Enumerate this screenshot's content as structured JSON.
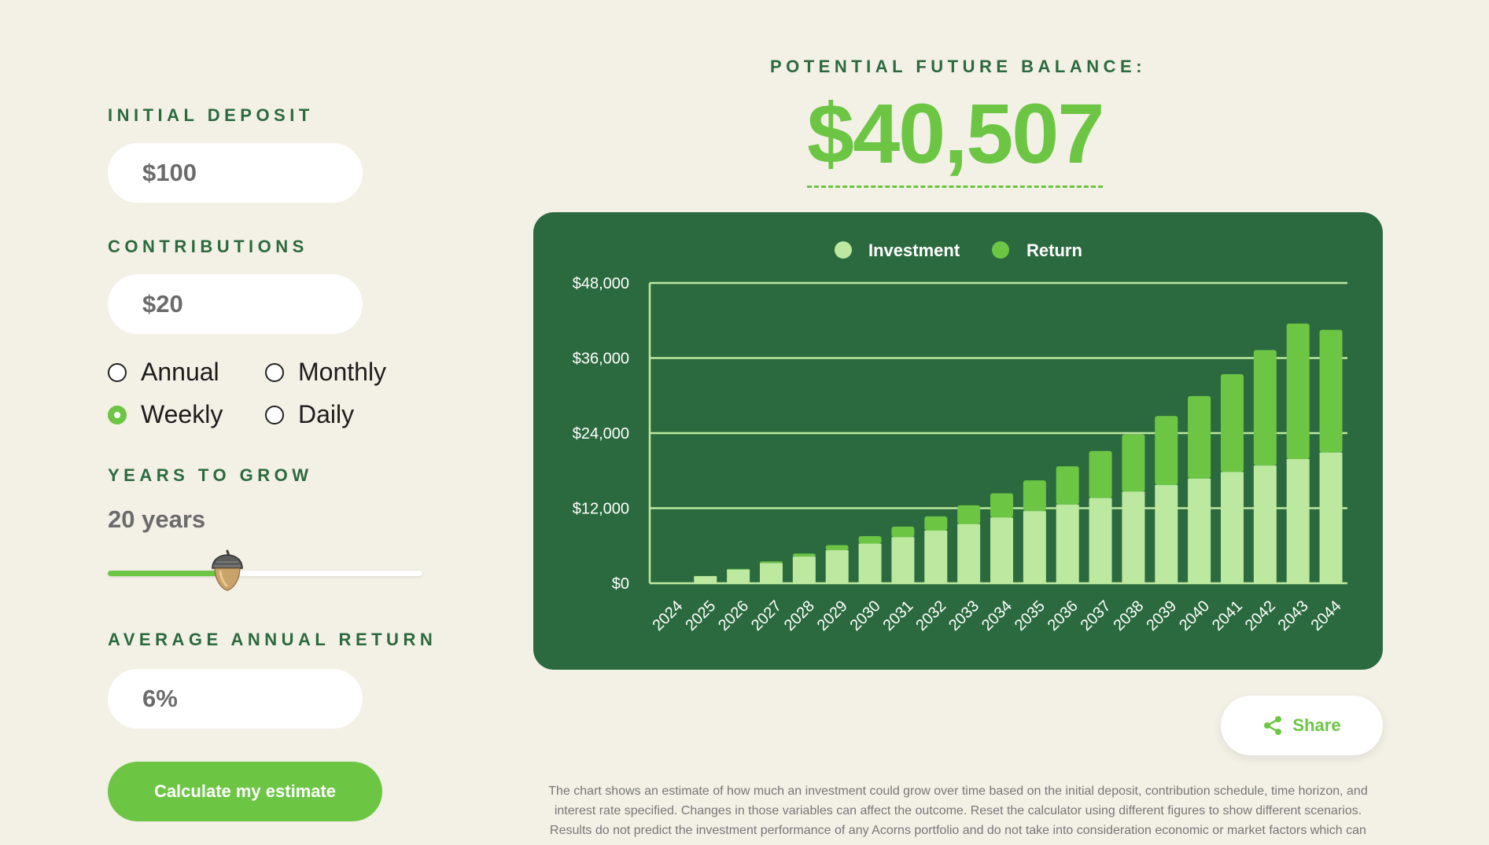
{
  "form": {
    "initial_deposit_label": "INITIAL DEPOSIT",
    "initial_deposit_value": "$100",
    "contributions_label": "CONTRIBUTIONS",
    "contributions_value": "$20",
    "frequency_options": [
      {
        "label": "Annual",
        "checked": false
      },
      {
        "label": "Monthly",
        "checked": false
      },
      {
        "label": "Weekly",
        "checked": true
      },
      {
        "label": "Daily",
        "checked": false
      }
    ],
    "years_label": "YEARS TO GROW",
    "years_value": "20 years",
    "years_slider_fraction": 0.38,
    "return_label": "AVERAGE ANNUAL RETURN",
    "return_value": "6%",
    "calculate_label": "Calculate my estimate"
  },
  "result": {
    "label": "POTENTIAL FUTURE BALANCE:",
    "balance": "$40,507"
  },
  "share_label": "Share",
  "disclaimer": {
    "line1": "The chart shows an estimate of how much an investment could grow over time based on the initial deposit, contribution schedule, time horizon, and",
    "line2": "interest rate specified.  Changes in those variables can affect the outcome.  Reset the calculator using different figures to show different scenarios.",
    "line3": "Results do not predict the investment performance of any Acorns portfolio and do not take into consideration economic or market factors which can"
  },
  "colors": {
    "accent": "#6cc644",
    "dark_green": "#2b6a3e",
    "investment": "#bde8a0",
    "return": "#6cc644",
    "background": "#f3f0e6"
  },
  "chart_data": {
    "type": "bar",
    "stacked": true,
    "categories": [
      "2024",
      "2025",
      "2026",
      "2027",
      "2028",
      "2029",
      "2030",
      "2031",
      "2032",
      "2033",
      "2034",
      "2035",
      "2036",
      "2037",
      "2038",
      "2039",
      "2040",
      "2041",
      "2042",
      "2043",
      "2044"
    ],
    "series": [
      {
        "name": "Investment",
        "values": [
          100,
          1140,
          2180,
          3220,
          4260,
          5300,
          6340,
          7380,
          8420,
          9460,
          10500,
          11540,
          12580,
          13620,
          14660,
          15700,
          16740,
          17780,
          18820,
          19860,
          20900
        ]
      },
      {
        "name": "Return",
        "values": [
          0,
          30,
          120,
          270,
          490,
          790,
          1180,
          1670,
          2270,
          3000,
          3870,
          4900,
          6110,
          7520,
          9150,
          11030,
          13180,
          15640,
          18450,
          21660,
          19607
        ]
      }
    ],
    "y_tick_labels": [
      "$0",
      "$12,000",
      "$24,000",
      "$36,000",
      "$48,000"
    ],
    "ylim": [
      0,
      48000
    ],
    "legend_placement": "top-center",
    "grid": true
  }
}
